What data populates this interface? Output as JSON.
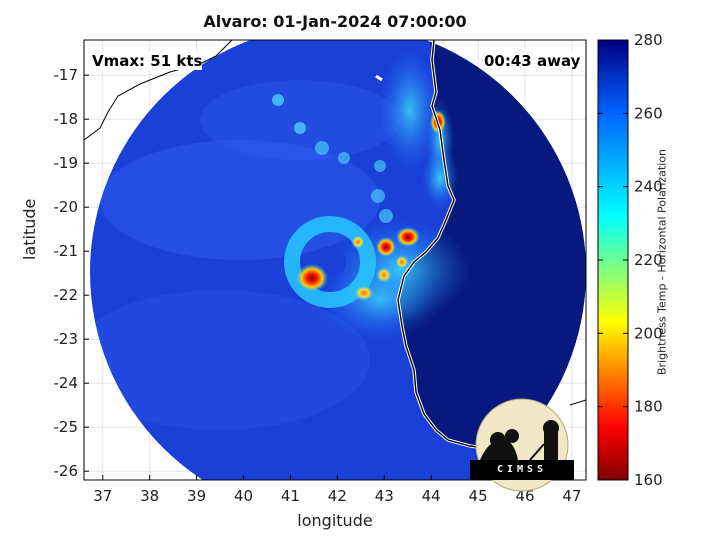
{
  "title": "Alvaro: 01-Jan-2024 07:00:00",
  "annotations": {
    "vmax": "Vmax: 51 kts",
    "away": "00:43 away"
  },
  "axes": {
    "xlabel": "longitude",
    "ylabel": "latitude",
    "x_ticks": [
      37,
      38,
      39,
      40,
      41,
      42,
      43,
      44,
      45,
      46,
      47
    ],
    "y_ticks": [
      -17,
      -18,
      -19,
      -20,
      -21,
      -22,
      -23,
      -24,
      -25,
      -26
    ],
    "xlim": [
      36.6,
      47.3
    ],
    "ylim": [
      -26.2,
      -16.2
    ],
    "grid": true
  },
  "colorbar": {
    "label": "Brightness Temp - Horizontal Polarization",
    "ticks": [
      280,
      260,
      240,
      220,
      200,
      180,
      160
    ],
    "range": [
      160,
      280
    ],
    "colormap": "jet"
  },
  "logo": {
    "text": "CIMSS"
  },
  "colors": {
    "deep_blue": "#1436c8",
    "land": "#05147a",
    "frame": "#000000"
  }
}
